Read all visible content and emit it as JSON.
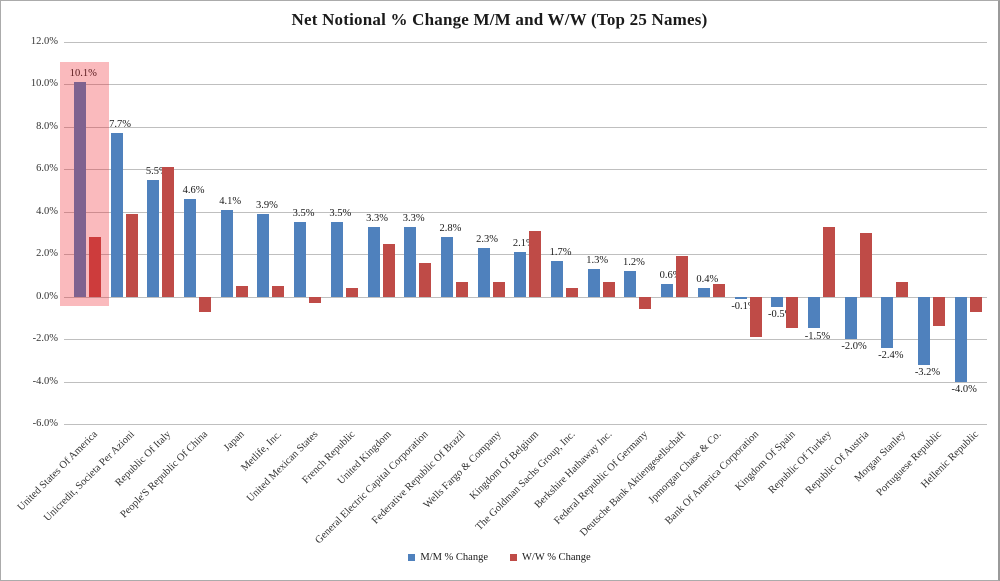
{
  "chart_data": {
    "type": "bar",
    "title": "Net Notional % Change M/M and W/W (Top 25 Names)",
    "categories": [
      "United States Of America",
      "Unicredit, Societa Per Azioni",
      "Republic Of Italy",
      "People'S Republic Of China",
      "Japan",
      "Metlife, Inc.",
      "United Mexican States",
      "French Republic",
      "United Kingdom",
      "General Electric Capital Corporation",
      "Federative Republic Of Brazil",
      "Wells Fargo & Company",
      "Kingdom Of Belgium",
      "The Goldman Sachs Group, Inc.",
      "Berkshire Hathaway Inc.",
      "Federal Republic Of Germany",
      "Deutsche Bank Aktiengesellschaft",
      "Jpmorgan Chase & Co.",
      "Bank Of America Corporation",
      "Kingdom Of Spain",
      "Republic Of Turkey",
      "Republic Of Austria",
      "Morgan Stanley",
      "Portuguese Republic",
      "Hellenic Republic"
    ],
    "series": [
      {
        "name": "M/M % Change",
        "color": "#4F81BD",
        "data_labels": true,
        "values": [
          10.1,
          7.7,
          5.5,
          4.6,
          4.1,
          3.9,
          3.5,
          3.5,
          3.3,
          3.3,
          2.8,
          2.3,
          2.1,
          1.7,
          1.3,
          1.2,
          0.6,
          0.4,
          -0.1,
          -0.5,
          -1.5,
          -2.0,
          -2.4,
          -3.2,
          -4.0
        ]
      },
      {
        "name": "W/W % Change",
        "color": "#BF4B47",
        "data_labels": false,
        "values": [
          2.8,
          3.9,
          6.1,
          -0.7,
          0.5,
          0.5,
          -0.3,
          0.4,
          2.5,
          1.6,
          0.7,
          0.7,
          3.1,
          0.4,
          0.7,
          -0.6,
          1.9,
          0.6,
          -1.9,
          -1.5,
          3.3,
          3.0,
          0.7,
          -1.4,
          -0.7
        ]
      }
    ],
    "ylim": [
      -6,
      12
    ],
    "ytick_step": 2,
    "ytick_format": "percent_one_decimal",
    "grid": true,
    "legend_position": "bottom",
    "gridline_color": "#BFBFBF",
    "highlight": {
      "category_index": 0,
      "color": "rgba(237,28,36,0.30)"
    }
  }
}
